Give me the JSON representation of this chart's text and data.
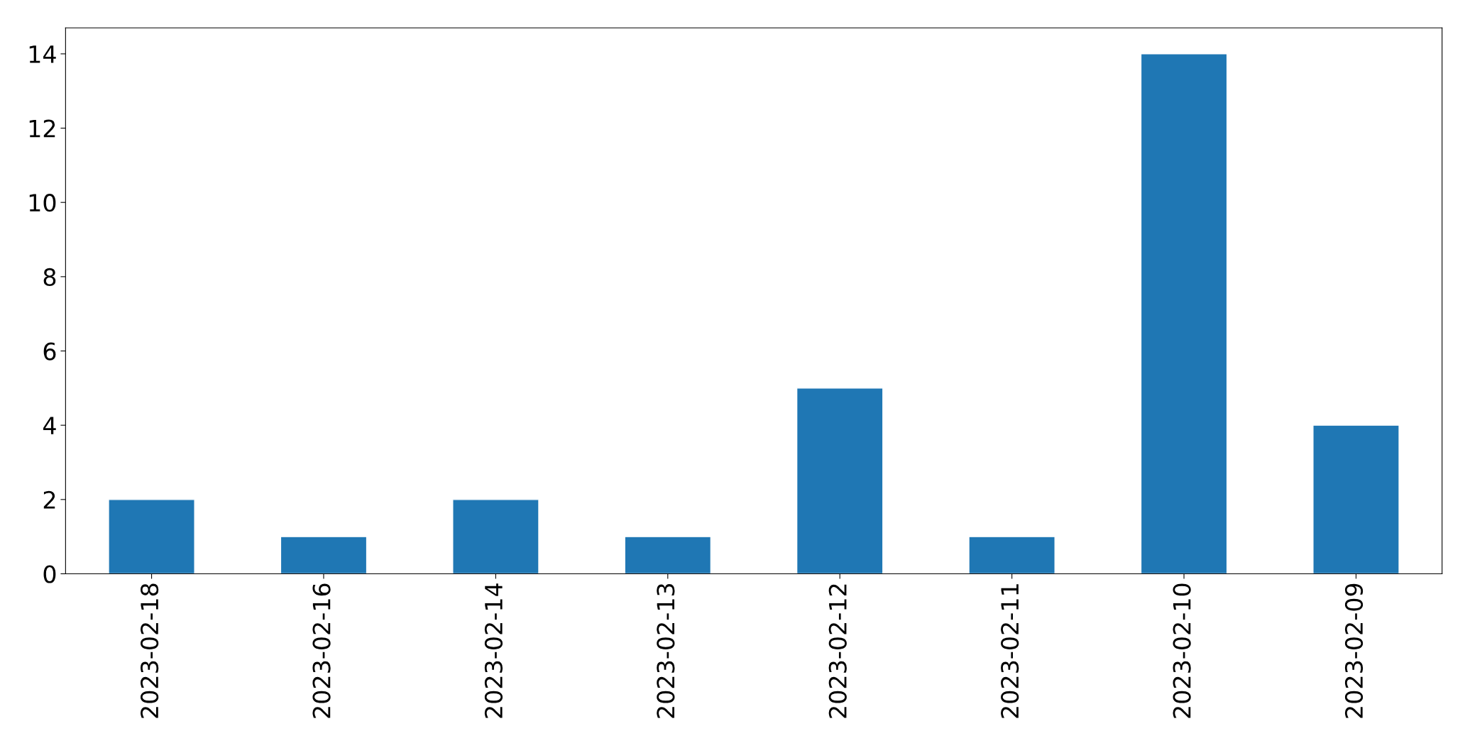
{
  "chart_data": {
    "type": "bar",
    "categories": [
      "2023-02-18",
      "2023-02-16",
      "2023-02-14",
      "2023-02-13",
      "2023-02-12",
      "2023-02-11",
      "2023-02-10",
      "2023-02-09"
    ],
    "values": [
      2,
      1,
      2,
      1,
      5,
      1,
      14,
      4
    ],
    "color": "#1f77b4",
    "ylim": [
      0,
      14.7
    ],
    "yticks": [
      0,
      2,
      4,
      6,
      8,
      10,
      12,
      14
    ],
    "grid": false
  }
}
